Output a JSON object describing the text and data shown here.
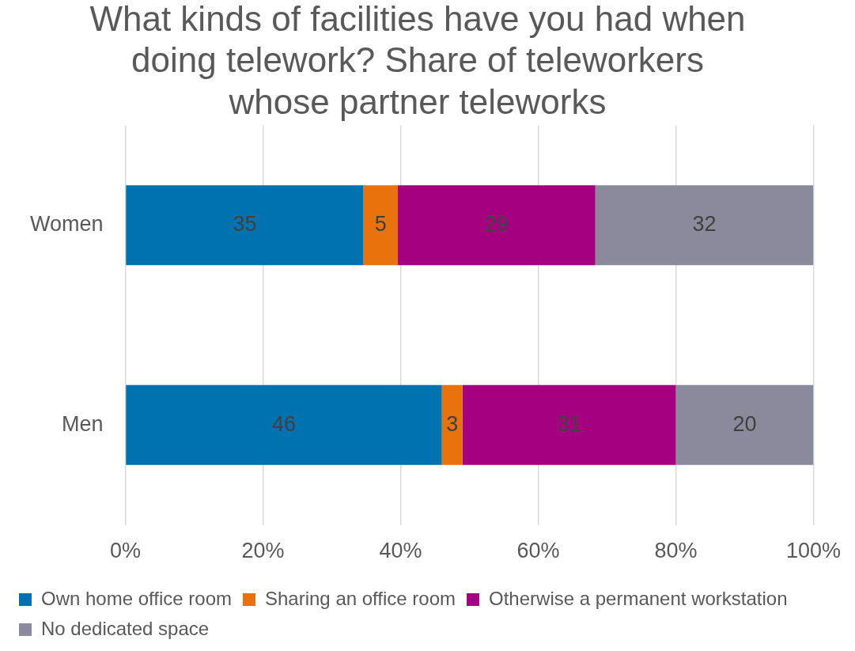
{
  "chart_data": {
    "type": "bar",
    "orientation": "horizontal",
    "stacked": true,
    "title": "What kinds of facilities have you had when doing telework? Share of teleworkers whose partner teleworks",
    "categories": [
      "Women",
      "Men"
    ],
    "series": [
      {
        "name": "Own home office room",
        "color": "#0072b0",
        "values": [
          34.6,
          46
        ],
        "value_labels": [
          "35",
          "46"
        ]
      },
      {
        "name": "Sharing an office room",
        "color": "#e8720c",
        "values": [
          5.0,
          3
        ],
        "value_labels": [
          "5",
          "3"
        ]
      },
      {
        "name": "Otherwise a permanent workstation",
        "color": "#a5007f",
        "values": [
          28.7,
          31
        ],
        "value_labels": [
          "29",
          "31"
        ]
      },
      {
        "name": "No dedicated space",
        "color": "#8a8a9c",
        "values": [
          31.7,
          20
        ],
        "value_labels": [
          "32",
          "20"
        ]
      }
    ],
    "xlim": [
      0,
      100
    ],
    "xticks": [
      {
        "value": 0,
        "label": "0%"
      },
      {
        "value": 20,
        "label": "20%"
      },
      {
        "value": 40,
        "label": "40%"
      },
      {
        "value": 60,
        "label": "60%"
      },
      {
        "value": 80,
        "label": "80%"
      },
      {
        "value": 100,
        "label": "100%"
      }
    ],
    "grid": "x",
    "legend": "bottom"
  }
}
